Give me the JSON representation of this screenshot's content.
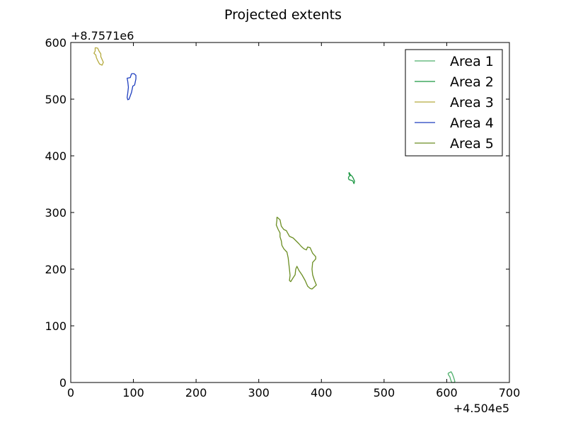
{
  "chart_data": {
    "type": "line",
    "title": "Projected extents",
    "xlabel": "",
    "ylabel": "",
    "xlim": [
      0,
      700
    ],
    "ylim": [
      0,
      600
    ],
    "x_offset_label": "+4.504e5",
    "y_offset_label": "+8.7571e6",
    "x_ticks": [
      "0",
      "100",
      "200",
      "300",
      "400",
      "500",
      "600",
      "700"
    ],
    "y_ticks": [
      "0",
      "100",
      "200",
      "300",
      "400",
      "500",
      "600"
    ],
    "grid": false,
    "legend_position": "top-right",
    "series": [
      {
        "name": "Area 1",
        "color": "#4daf6a",
        "points": [
          [
            602,
            16
          ],
          [
            607,
            19
          ],
          [
            609,
            15
          ],
          [
            611,
            9
          ],
          [
            613,
            2
          ],
          [
            612,
            0
          ],
          [
            608,
            0
          ],
          [
            606,
            6
          ],
          [
            605,
            10
          ],
          [
            603,
            13
          ],
          [
            602,
            16
          ]
        ]
      },
      {
        "name": "Area 2",
        "color": "#1a9641",
        "points": [
          [
            444,
            371
          ],
          [
            446,
            367
          ],
          [
            449,
            364
          ],
          [
            451,
            360
          ],
          [
            453,
            355
          ],
          [
            452,
            351
          ],
          [
            450,
            356
          ],
          [
            447,
            357
          ],
          [
            444,
            358
          ],
          [
            443,
            361
          ],
          [
            444,
            364
          ],
          [
            446,
            365
          ],
          [
            444,
            368
          ],
          [
            444,
            371
          ]
        ]
      },
      {
        "name": "Area 3",
        "color": "#b5aa3e",
        "points": [
          [
            39,
            591
          ],
          [
            43,
            590
          ],
          [
            45,
            585
          ],
          [
            48,
            580
          ],
          [
            48,
            575
          ],
          [
            50,
            570
          ],
          [
            52,
            565
          ],
          [
            50,
            560
          ],
          [
            46,
            562
          ],
          [
            43,
            568
          ],
          [
            41,
            573
          ],
          [
            40,
            578
          ],
          [
            37,
            581
          ],
          [
            39,
            585
          ],
          [
            39,
            591
          ]
        ]
      },
      {
        "name": "Area 4",
        "color": "#1f3fbf",
        "points": [
          [
            97,
            545
          ],
          [
            101,
            545
          ],
          [
            104,
            542
          ],
          [
            104,
            536
          ],
          [
            102,
            525
          ],
          [
            99,
            523
          ],
          [
            97,
            512
          ],
          [
            93,
            500
          ],
          [
            91,
            499
          ],
          [
            90,
            503
          ],
          [
            91,
            511
          ],
          [
            92,
            521
          ],
          [
            91,
            531
          ],
          [
            90,
            537
          ],
          [
            95,
            538
          ],
          [
            97,
            545
          ]
        ]
      },
      {
        "name": "Area 5",
        "color": "#6b8e23",
        "points": [
          [
            329,
            292
          ],
          [
            334,
            287
          ],
          [
            336,
            276
          ],
          [
            340,
            270
          ],
          [
            344,
            268
          ],
          [
            349,
            258
          ],
          [
            355,
            255
          ],
          [
            364,
            245
          ],
          [
            368,
            240
          ],
          [
            372,
            236
          ],
          [
            376,
            234
          ],
          [
            378,
            239
          ],
          [
            382,
            238
          ],
          [
            386,
            228
          ],
          [
            391,
            222
          ],
          [
            391,
            218
          ],
          [
            386,
            212
          ],
          [
            385,
            200
          ],
          [
            386,
            190
          ],
          [
            389,
            180
          ],
          [
            392,
            172
          ],
          [
            388,
            168
          ],
          [
            385,
            165
          ],
          [
            382,
            166
          ],
          [
            378,
            170
          ],
          [
            374,
            180
          ],
          [
            369,
            190
          ],
          [
            364,
            198
          ],
          [
            361,
            205
          ],
          [
            359,
            200
          ],
          [
            358,
            190
          ],
          [
            355,
            185
          ],
          [
            351,
            178
          ],
          [
            349,
            180
          ],
          [
            350,
            189
          ],
          [
            349,
            200
          ],
          [
            348,
            210
          ],
          [
            347,
            220
          ],
          [
            345,
            230
          ],
          [
            340,
            236
          ],
          [
            337,
            242
          ],
          [
            336,
            250
          ],
          [
            334,
            257
          ],
          [
            334,
            264
          ],
          [
            331,
            270
          ],
          [
            328,
            278
          ],
          [
            329,
            286
          ],
          [
            329,
            292
          ]
        ]
      }
    ]
  }
}
